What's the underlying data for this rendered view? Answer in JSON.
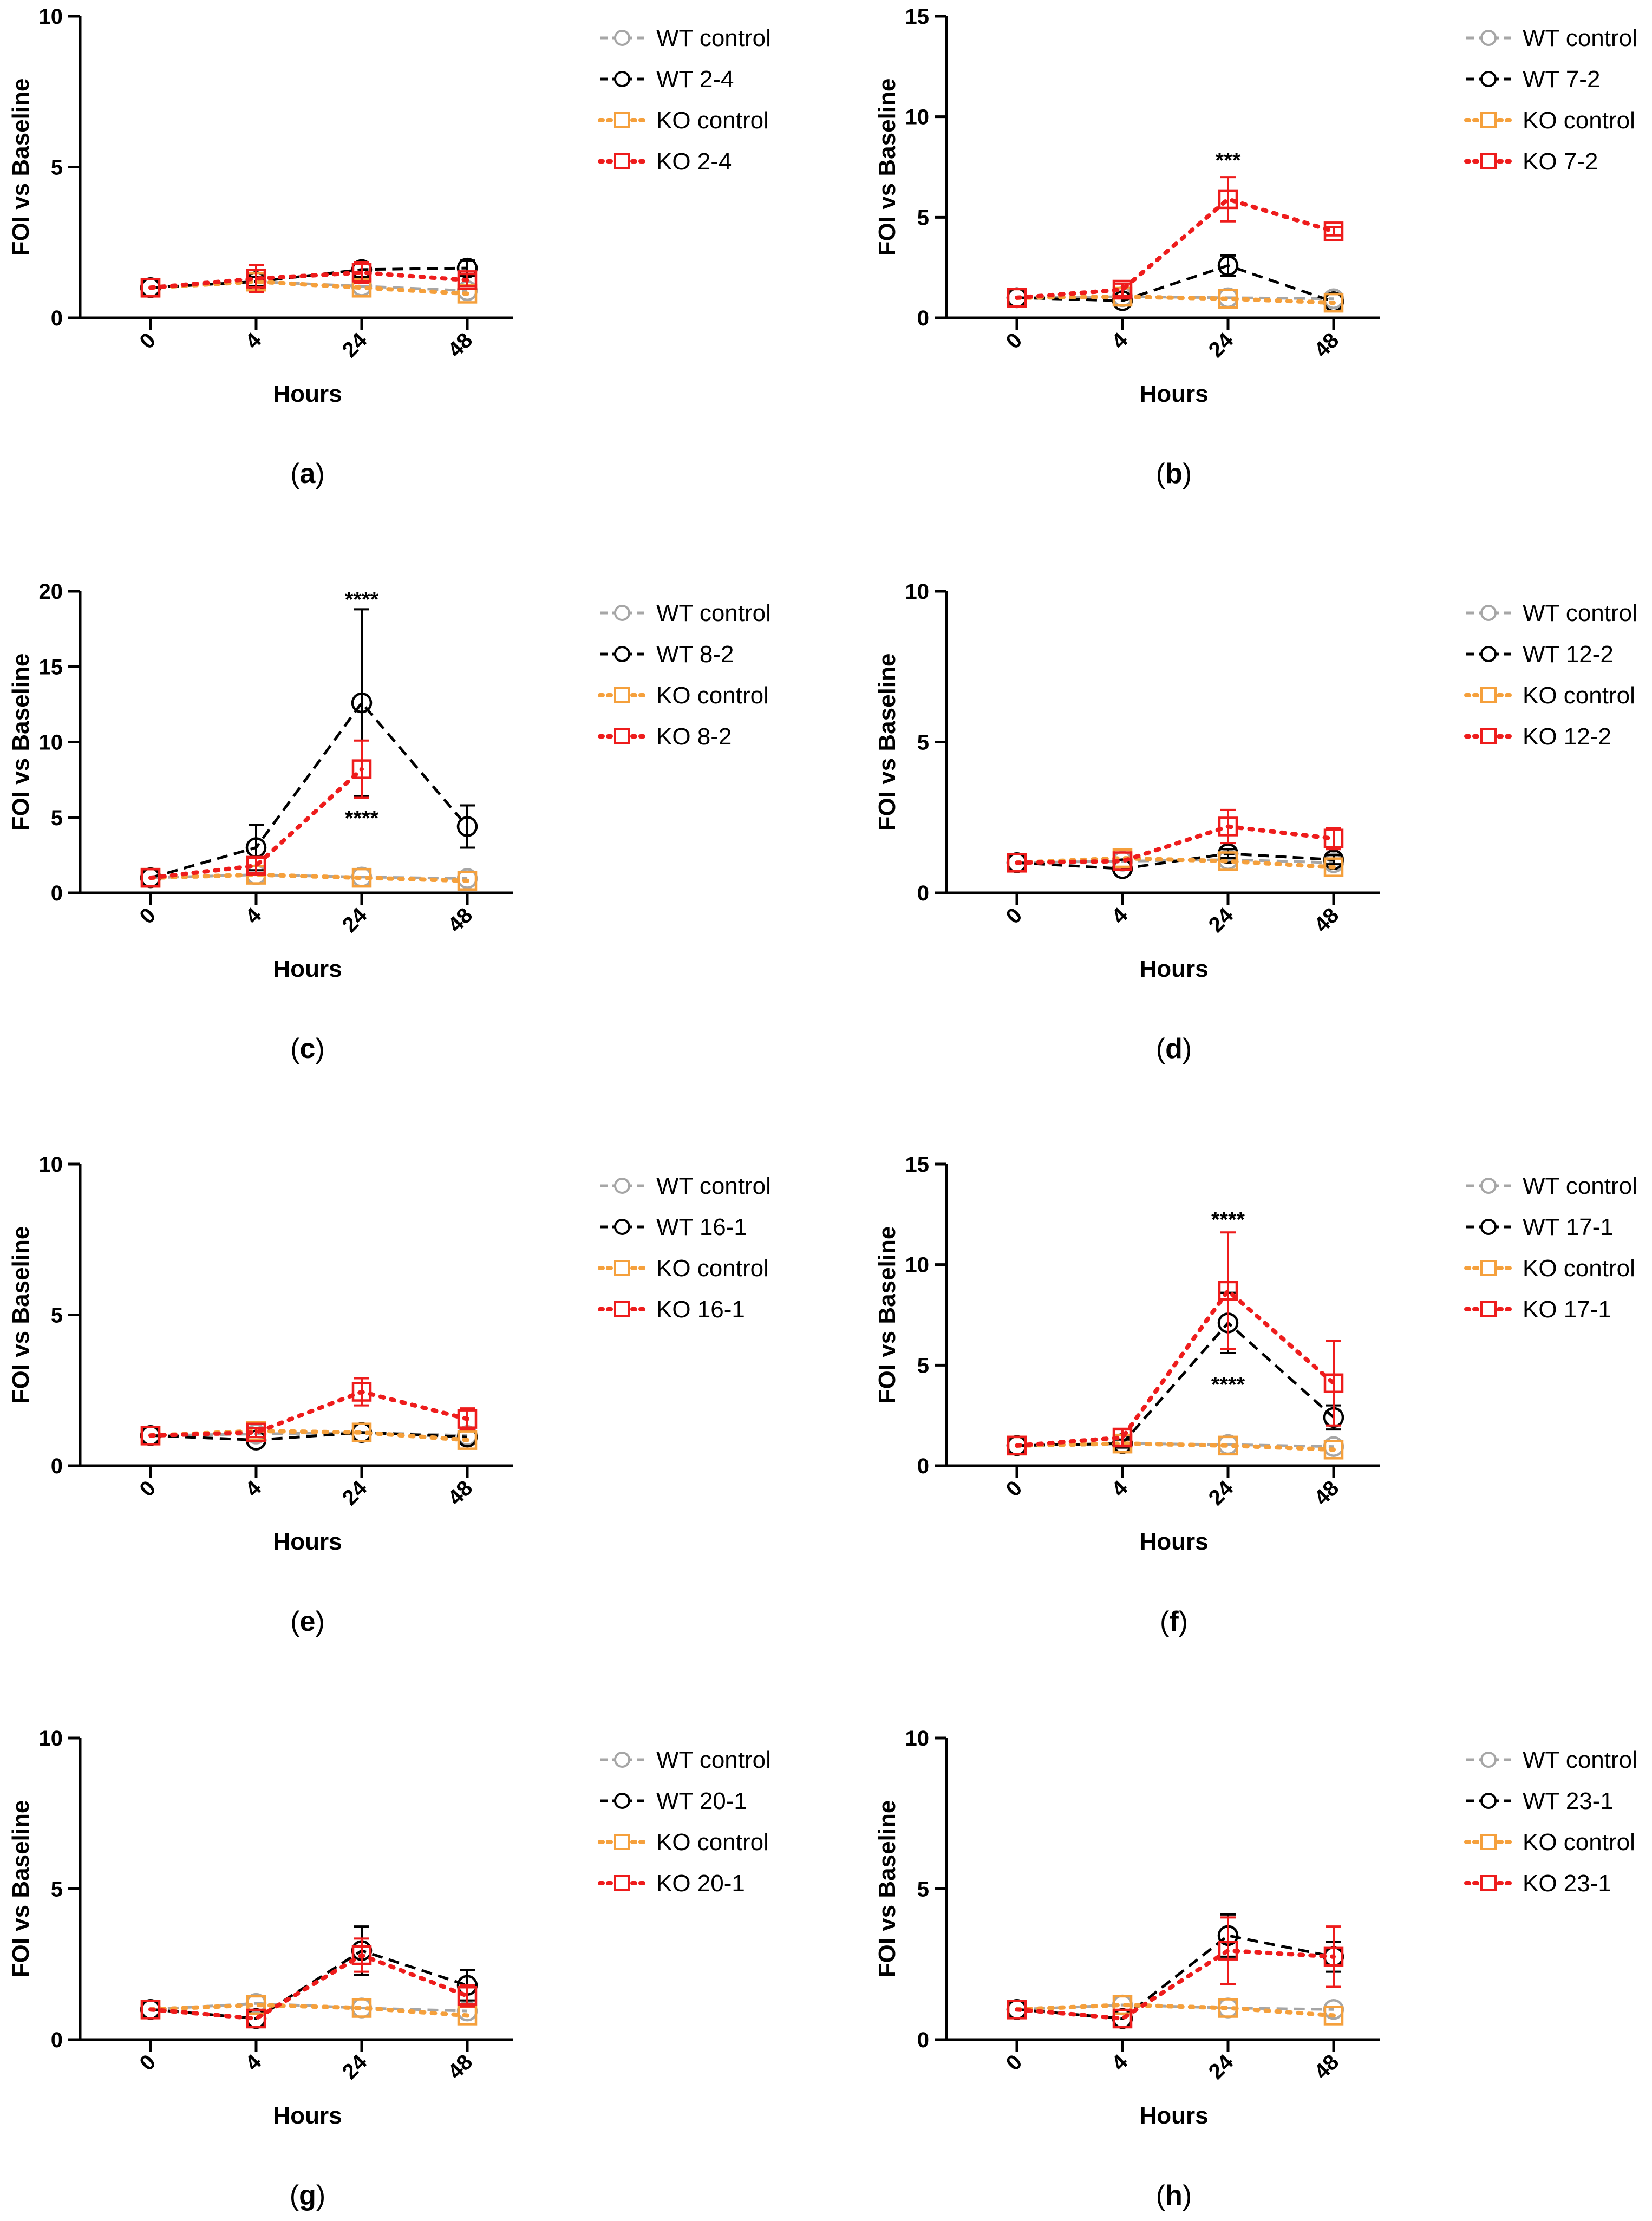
{
  "chart_data": [
    {
      "panel": "a",
      "type": "line",
      "x_ticks": [
        "0",
        "4",
        "24",
        "48"
      ],
      "xlabel": "Hours",
      "ylabel": "FOI vs Baseline",
      "ylim": [
        0,
        10
      ],
      "y_ticks": [
        "0",
        "5",
        "10"
      ],
      "series": [
        {
          "name": "WT control",
          "color": "#a6a6a6",
          "marker": "circle",
          "dash": "dashed",
          "values": [
            1.0,
            1.2,
            1.05,
            0.9
          ],
          "errors": [
            0.05,
            0.1,
            0.05,
            0.05
          ]
        },
        {
          "name": "WT 2-4",
          "color": "#000000",
          "marker": "circle",
          "dash": "dashed",
          "values": [
            1.0,
            1.2,
            1.6,
            1.65
          ],
          "errors": [
            0.05,
            0.15,
            0.25,
            0.25
          ]
        },
        {
          "name": "KO control",
          "color": "#f5a03c",
          "marker": "square",
          "dash": "dotted",
          "values": [
            1.0,
            1.2,
            1.0,
            0.8
          ],
          "errors": [
            0.05,
            0.1,
            0.1,
            0.1
          ]
        },
        {
          "name": "KO 2-4",
          "color": "#ee1c1c",
          "marker": "square",
          "dash": "dotted",
          "values": [
            1.0,
            1.3,
            1.5,
            1.25
          ],
          "errors": [
            0.05,
            0.45,
            0.35,
            0.2
          ]
        }
      ],
      "annotations": []
    },
    {
      "panel": "b",
      "type": "line",
      "x_ticks": [
        "0",
        "4",
        "24",
        "48"
      ],
      "xlabel": "Hours",
      "ylabel": "FOI vs Baseline",
      "ylim": [
        0,
        15
      ],
      "y_ticks": [
        "0",
        "5",
        "10",
        "15"
      ],
      "series": [
        {
          "name": "WT control",
          "color": "#a6a6a6",
          "marker": "circle",
          "dash": "dashed",
          "values": [
            1.0,
            1.05,
            1.0,
            0.95
          ],
          "errors": [
            0.05,
            0.1,
            0.1,
            0.05
          ]
        },
        {
          "name": "WT 7-2",
          "color": "#000000",
          "marker": "circle",
          "dash": "dashed",
          "values": [
            1.0,
            0.85,
            2.6,
            0.8
          ],
          "errors": [
            0.05,
            0.1,
            0.5,
            0.1
          ]
        },
        {
          "name": "KO control",
          "color": "#f5a03c",
          "marker": "square",
          "dash": "dotted",
          "values": [
            1.0,
            1.05,
            0.95,
            0.75
          ],
          "errors": [
            0.05,
            0.1,
            0.1,
            0.1
          ]
        },
        {
          "name": "KO 7-2",
          "color": "#ee1c1c",
          "marker": "square",
          "dash": "dotted",
          "values": [
            1.0,
            1.4,
            5.9,
            4.3
          ],
          "errors": [
            0.05,
            0.3,
            1.1,
            0.2
          ]
        }
      ],
      "annotations": [
        {
          "text": "***",
          "x": "24",
          "y": 7.8
        }
      ]
    },
    {
      "panel": "c",
      "type": "line",
      "x_ticks": [
        "0",
        "4",
        "24",
        "48"
      ],
      "xlabel": "Hours",
      "ylabel": "FOI vs Baseline",
      "ylim": [
        0,
        20
      ],
      "y_ticks": [
        "0",
        "5",
        "10",
        "15",
        "20"
      ],
      "series": [
        {
          "name": "WT control",
          "color": "#a6a6a6",
          "marker": "circle",
          "dash": "dashed",
          "values": [
            1.0,
            1.2,
            1.05,
            0.95
          ],
          "errors": [
            0.05,
            0.1,
            0.1,
            0.1
          ]
        },
        {
          "name": "WT 8-2",
          "color": "#000000",
          "marker": "circle",
          "dash": "dashed",
          "values": [
            1.0,
            3.0,
            12.6,
            4.4
          ],
          "errors": [
            0.1,
            1.5,
            6.2,
            1.4
          ]
        },
        {
          "name": "KO control",
          "color": "#f5a03c",
          "marker": "square",
          "dash": "dotted",
          "values": [
            1.0,
            1.2,
            1.0,
            0.8
          ],
          "errors": [
            0.05,
            0.1,
            0.1,
            0.1
          ]
        },
        {
          "name": "KO 8-2",
          "color": "#ee1c1c",
          "marker": "square",
          "dash": "dotted",
          "values": [
            1.0,
            1.8,
            8.2,
            null
          ],
          "errors": [
            0.05,
            0.5,
            1.9,
            0
          ]
        }
      ],
      "annotations": [
        {
          "text": "****",
          "x": "24",
          "y": 19.4
        },
        {
          "text": "****",
          "x": "24",
          "y": 4.9
        }
      ]
    },
    {
      "panel": "d",
      "type": "line",
      "x_ticks": [
        "0",
        "4",
        "24",
        "48"
      ],
      "xlabel": "Hours",
      "ylabel": "FOI vs Baseline",
      "ylim": [
        0,
        10
      ],
      "y_ticks": [
        "0",
        "5",
        "10"
      ],
      "series": [
        {
          "name": "WT control",
          "color": "#a6a6a6",
          "marker": "circle",
          "dash": "dashed",
          "values": [
            1.0,
            1.05,
            1.1,
            1.0
          ],
          "errors": [
            0.05,
            0.1,
            0.1,
            0.1
          ]
        },
        {
          "name": "WT 12-2",
          "color": "#000000",
          "marker": "circle",
          "dash": "dashed",
          "values": [
            1.0,
            0.8,
            1.3,
            1.1
          ],
          "errors": [
            0.05,
            0.1,
            0.15,
            0.15
          ]
        },
        {
          "name": "KO control",
          "color": "#f5a03c",
          "marker": "square",
          "dash": "dotted",
          "values": [
            1.0,
            1.15,
            1.05,
            0.85
          ],
          "errors": [
            0.05,
            0.1,
            0.1,
            0.1
          ]
        },
        {
          "name": "KO 12-2",
          "color": "#ee1c1c",
          "marker": "square",
          "dash": "dotted",
          "values": [
            1.0,
            1.05,
            2.2,
            1.8
          ],
          "errors": [
            0.05,
            0.1,
            0.55,
            0.35
          ]
        }
      ],
      "annotations": []
    },
    {
      "panel": "e",
      "type": "line",
      "x_ticks": [
        "0",
        "4",
        "24",
        "48"
      ],
      "xlabel": "Hours",
      "ylabel": "FOI vs Baseline",
      "ylim": [
        0,
        10
      ],
      "y_ticks": [
        "0",
        "5",
        "10"
      ],
      "series": [
        {
          "name": "WT control",
          "color": "#a6a6a6",
          "marker": "circle",
          "dash": "dashed",
          "values": [
            1.0,
            1.05,
            1.1,
            1.0
          ],
          "errors": [
            0.05,
            0.1,
            0.1,
            0.1
          ]
        },
        {
          "name": "WT 16-1",
          "color": "#000000",
          "marker": "circle",
          "dash": "dashed",
          "values": [
            1.0,
            0.85,
            1.1,
            0.95
          ],
          "errors": [
            0.05,
            0.1,
            0.1,
            0.1
          ]
        },
        {
          "name": "KO control",
          "color": "#f5a03c",
          "marker": "square",
          "dash": "dotted",
          "values": [
            1.0,
            1.15,
            1.1,
            0.85
          ],
          "errors": [
            0.05,
            0.1,
            0.1,
            0.1
          ]
        },
        {
          "name": "KO 16-1",
          "color": "#ee1c1c",
          "marker": "square",
          "dash": "dotted",
          "values": [
            1.0,
            1.1,
            2.45,
            1.55
          ],
          "errors": [
            0.05,
            0.15,
            0.45,
            0.35
          ]
        }
      ],
      "annotations": []
    },
    {
      "panel": "f",
      "type": "line",
      "x_ticks": [
        "0",
        "4",
        "24",
        "48"
      ],
      "xlabel": "Hours",
      "ylabel": "FOI vs Baseline",
      "ylim": [
        0,
        15
      ],
      "y_ticks": [
        "0",
        "5",
        "10",
        "15"
      ],
      "series": [
        {
          "name": "WT control",
          "color": "#a6a6a6",
          "marker": "circle",
          "dash": "dashed",
          "values": [
            1.0,
            1.1,
            1.05,
            0.95
          ],
          "errors": [
            0.05,
            0.1,
            0.1,
            0.1
          ]
        },
        {
          "name": "WT 17-1",
          "color": "#000000",
          "marker": "circle",
          "dash": "dashed",
          "values": [
            1.0,
            1.1,
            7.1,
            2.4
          ],
          "errors": [
            0.05,
            0.2,
            1.5,
            0.6
          ]
        },
        {
          "name": "KO control",
          "color": "#f5a03c",
          "marker": "square",
          "dash": "dotted",
          "values": [
            1.0,
            1.1,
            1.0,
            0.8
          ],
          "errors": [
            0.05,
            0.1,
            0.1,
            0.1
          ]
        },
        {
          "name": "KO 17-1",
          "color": "#ee1c1c",
          "marker": "square",
          "dash": "dotted",
          "values": [
            1.0,
            1.4,
            8.7,
            4.1
          ],
          "errors": [
            0.05,
            0.4,
            2.9,
            2.1
          ]
        }
      ],
      "annotations": [
        {
          "text": "****",
          "x": "24",
          "y": 12.2
        },
        {
          "text": "****",
          "x": "24",
          "y": 4.0
        }
      ]
    },
    {
      "panel": "g",
      "type": "line",
      "x_ticks": [
        "0",
        "4",
        "24",
        "48"
      ],
      "xlabel": "Hours",
      "ylabel": "FOI vs Baseline",
      "ylim": [
        0,
        10
      ],
      "y_ticks": [
        "0",
        "5",
        "10"
      ],
      "series": [
        {
          "name": "WT control",
          "color": "#a6a6a6",
          "marker": "circle",
          "dash": "dashed",
          "values": [
            1.0,
            1.2,
            1.05,
            0.95
          ],
          "errors": [
            0.05,
            0.1,
            0.1,
            0.1
          ]
        },
        {
          "name": "WT 20-1",
          "color": "#000000",
          "marker": "circle",
          "dash": "dashed",
          "values": [
            1.0,
            0.7,
            2.95,
            1.8
          ],
          "errors": [
            0.05,
            0.1,
            0.8,
            0.5
          ]
        },
        {
          "name": "KO control",
          "color": "#f5a03c",
          "marker": "square",
          "dash": "dotted",
          "values": [
            1.0,
            1.15,
            1.05,
            0.8
          ],
          "errors": [
            0.05,
            0.1,
            0.1,
            0.1
          ]
        },
        {
          "name": "KO 20-1",
          "color": "#ee1c1c",
          "marker": "square",
          "dash": "dotted",
          "values": [
            1.0,
            0.7,
            2.8,
            1.45
          ],
          "errors": [
            0.05,
            0.1,
            0.55,
            0.35
          ]
        }
      ],
      "annotations": []
    },
    {
      "panel": "h",
      "type": "line",
      "x_ticks": [
        "0",
        "4",
        "24",
        "48"
      ],
      "xlabel": "Hours",
      "ylabel": "FOI vs Baseline",
      "ylim": [
        0,
        10
      ],
      "y_ticks": [
        "0",
        "5",
        "10"
      ],
      "series": [
        {
          "name": "WT control",
          "color": "#a6a6a6",
          "marker": "circle",
          "dash": "dashed",
          "values": [
            1.0,
            1.15,
            1.05,
            1.0
          ],
          "errors": [
            0.05,
            0.1,
            0.1,
            0.1
          ]
        },
        {
          "name": "WT 23-1",
          "color": "#000000",
          "marker": "circle",
          "dash": "dashed",
          "values": [
            1.0,
            0.7,
            3.45,
            2.75
          ],
          "errors": [
            0.05,
            0.1,
            0.7,
            0.5
          ]
        },
        {
          "name": "KO control",
          "color": "#f5a03c",
          "marker": "square",
          "dash": "dotted",
          "values": [
            1.0,
            1.15,
            1.05,
            0.8
          ],
          "errors": [
            0.05,
            0.1,
            0.1,
            0.1
          ]
        },
        {
          "name": "KO 23-1",
          "color": "#ee1c1c",
          "marker": "square",
          "dash": "dotted",
          "values": [
            1.0,
            0.7,
            2.95,
            2.75
          ],
          "errors": [
            0.05,
            0.1,
            1.1,
            1.0
          ]
        }
      ],
      "annotations": []
    }
  ]
}
